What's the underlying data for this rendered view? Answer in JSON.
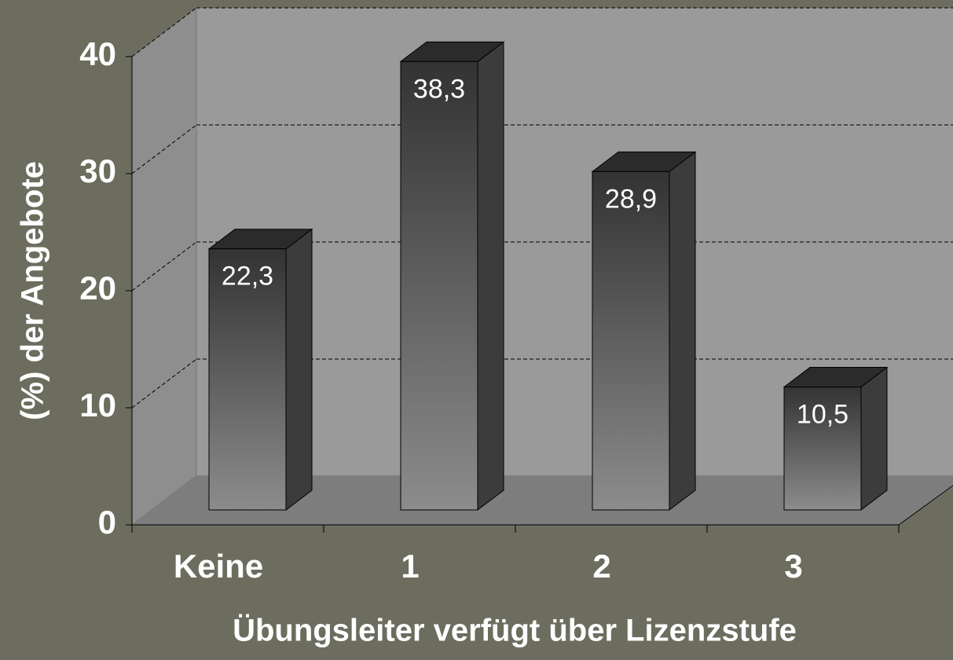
{
  "chart_data": {
    "type": "bar",
    "categories": [
      "Keine",
      "1",
      "2",
      "3"
    ],
    "values": [
      22.3,
      38.3,
      28.9,
      10.5
    ],
    "value_labels": [
      "22,3",
      "38,3",
      "28,9",
      "10,5"
    ],
    "ylim": [
      0,
      40
    ],
    "yticks": [
      0,
      10,
      20,
      30,
      40
    ],
    "grid": true,
    "xlabel": "Übungsleiter verfügt über Lizenzstufe",
    "ylabel": "(%) der Angebote",
    "color": "#8a8a8a"
  }
}
